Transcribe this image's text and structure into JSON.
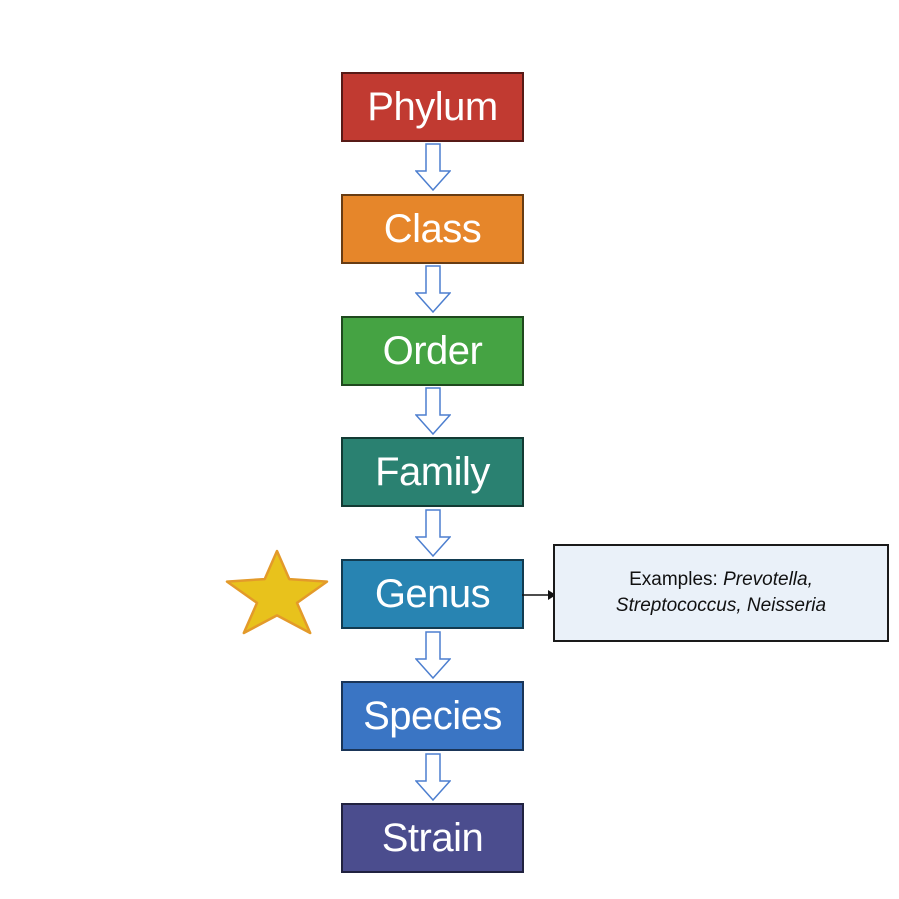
{
  "ranks": [
    {
      "label": "Phylum",
      "color": "#c13a31"
    },
    {
      "label": "Class",
      "color": "#e6862a"
    },
    {
      "label": "Order",
      "color": "#45a343"
    },
    {
      "label": "Family",
      "color": "#2a8171"
    },
    {
      "label": "Genus",
      "color": "#2884b2"
    },
    {
      "label": "Species",
      "color": "#3a75c4"
    },
    {
      "label": "Strain",
      "color": "#4b4d8e"
    }
  ],
  "highlight": {
    "icon": "star-icon",
    "color": "#e8c21c",
    "outline": "#e39a2a"
  },
  "examples": {
    "prefix": "Examples: ",
    "genus1": "Prevotella,",
    "genus2": "Streptococcus, Neisseria"
  },
  "arrow_color": "#4d7fcf"
}
